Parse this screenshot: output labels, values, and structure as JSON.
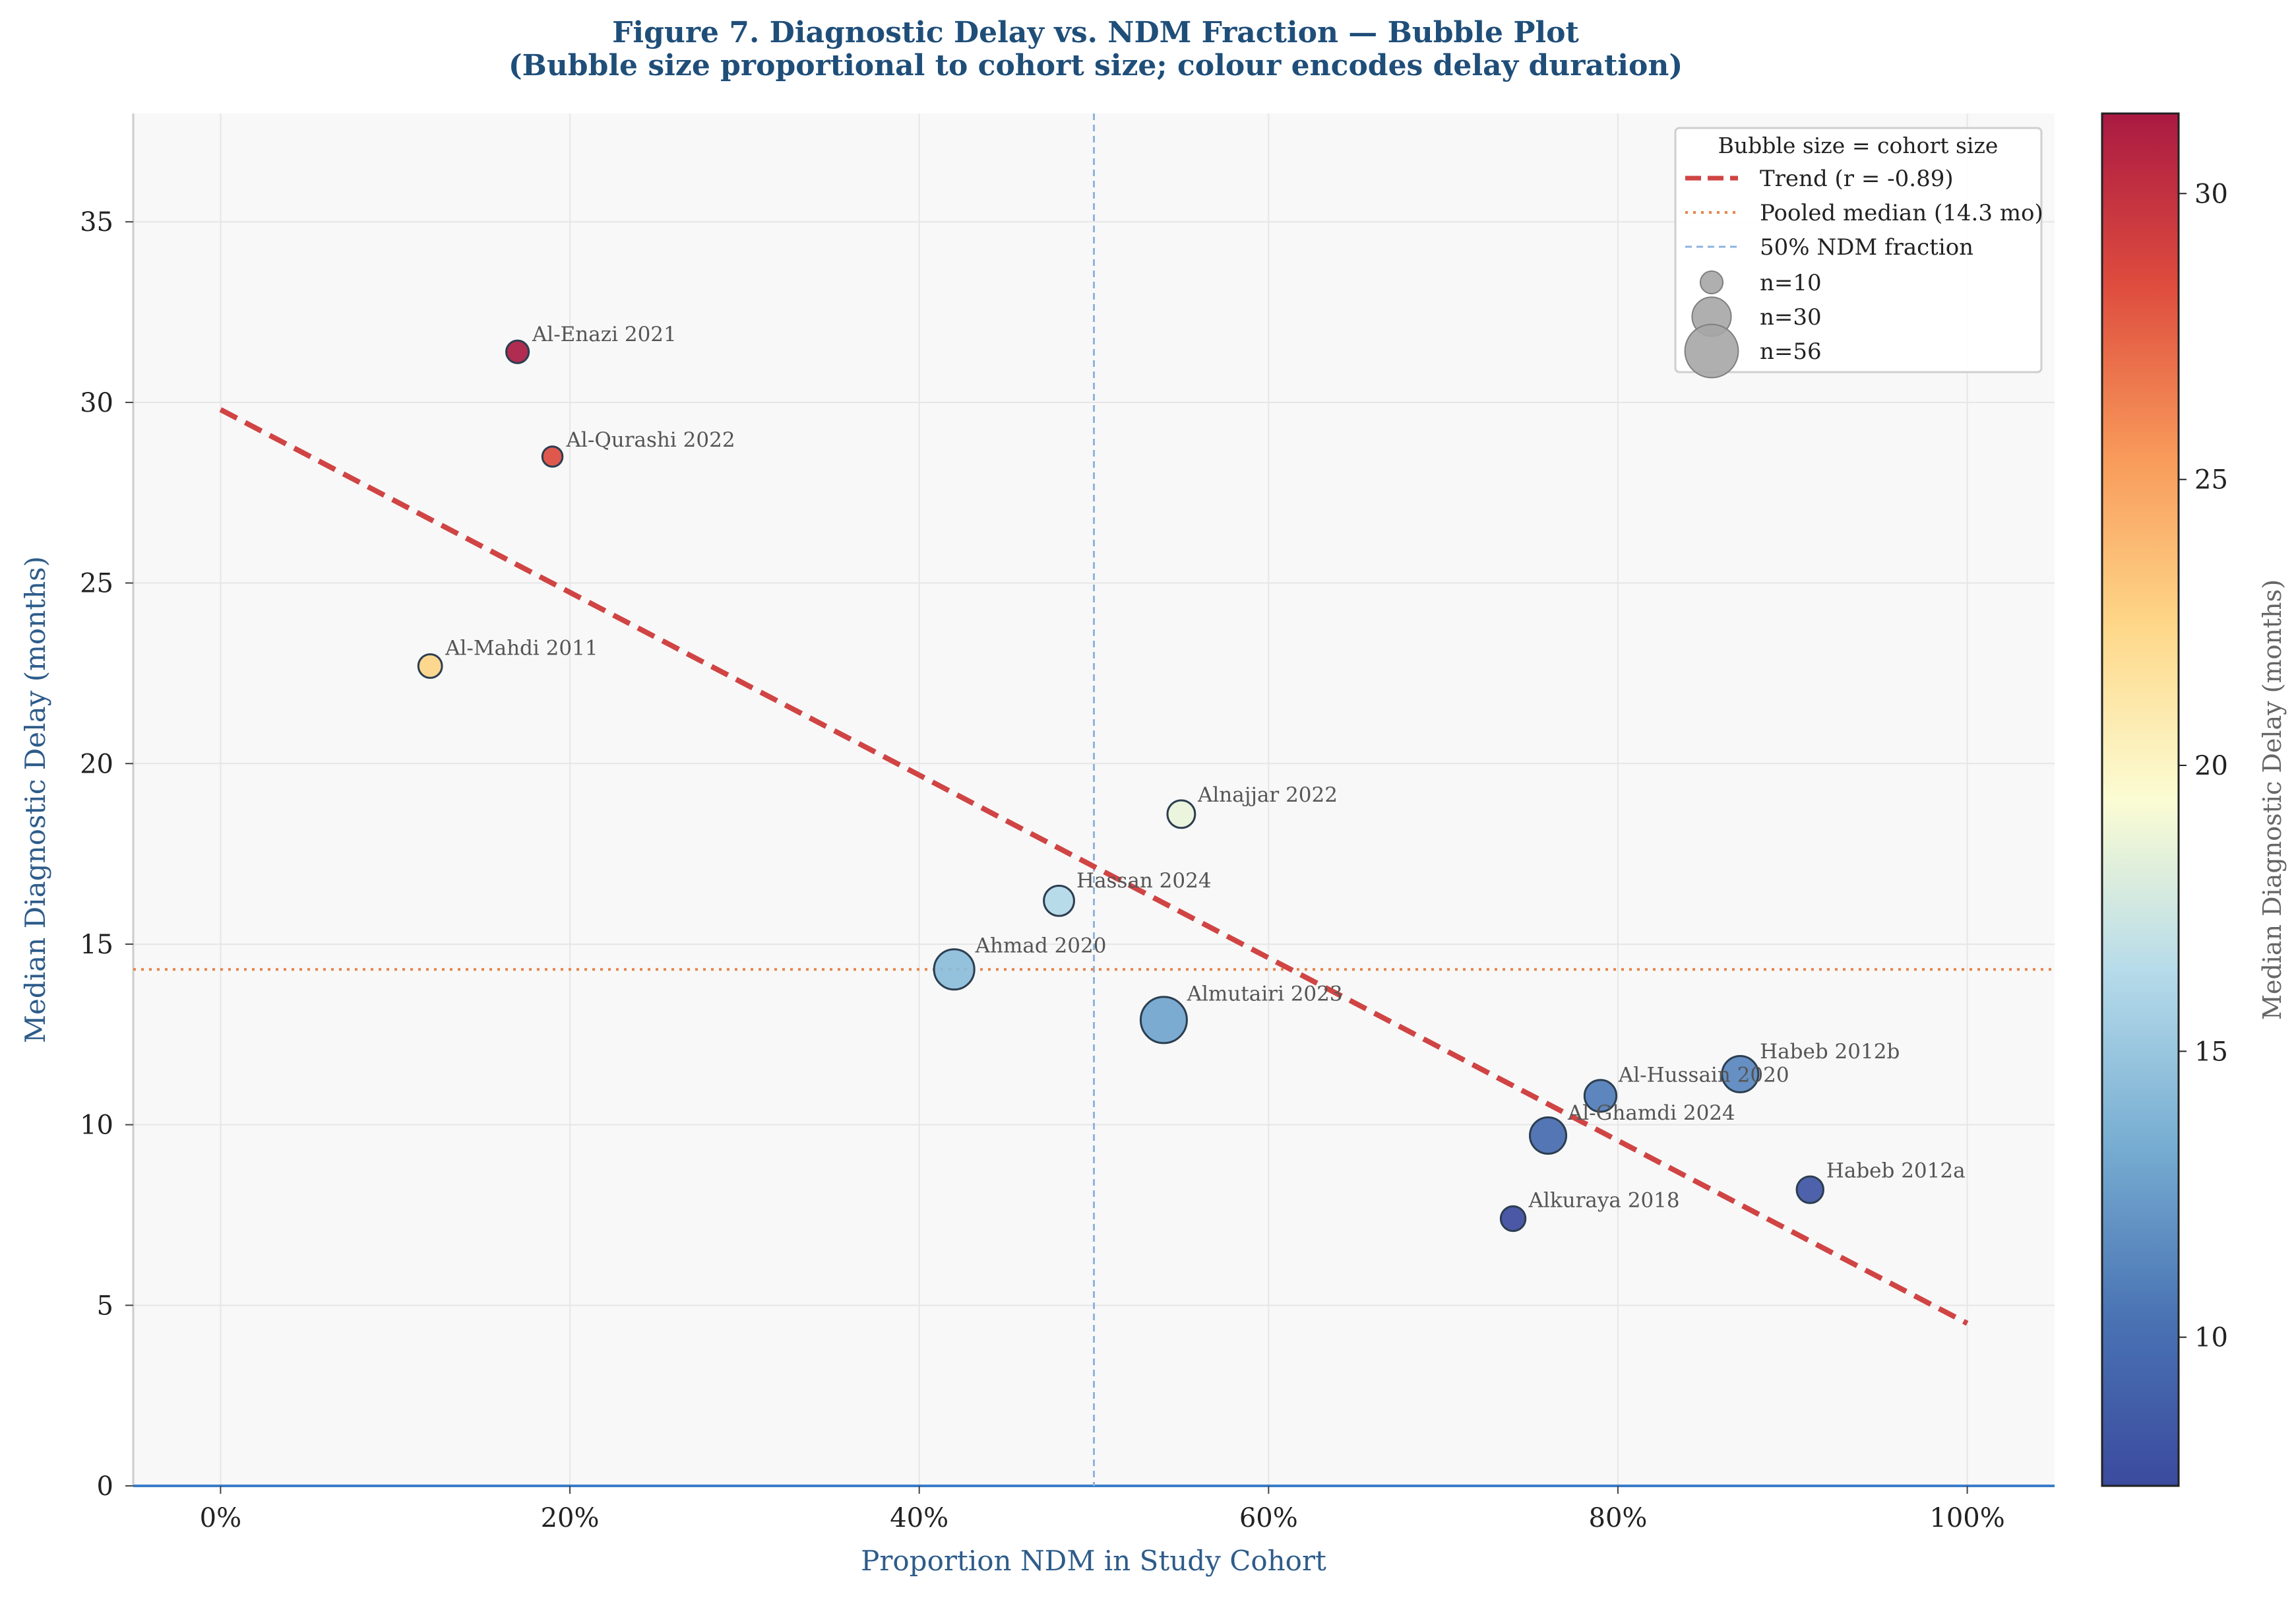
{
  "chart_data": {
    "type": "scatter",
    "title_line1": "Figure 7. Diagnostic Delay vs. NDM Fraction — Bubble Plot",
    "title_line2": "(Bubble size proportional to cohort size; colour encodes delay duration)",
    "xlabel": "Proportion NDM in Study Cohort",
    "ylabel": "Median Diagnostic Delay (months)",
    "colorbar_label": "Median Diagnostic Delay (months)",
    "xlim": [
      -0.05,
      1.05
    ],
    "ylim": [
      0,
      38
    ],
    "xticks": [
      0,
      0.2,
      0.4,
      0.6,
      0.8,
      1.0
    ],
    "xtick_labels": [
      "0%",
      "20%",
      "40%",
      "60%",
      "80%",
      "100%"
    ],
    "yticks": [
      0,
      5,
      10,
      15,
      20,
      25,
      30,
      35
    ],
    "ytick_labels": [
      "0",
      "5",
      "10",
      "15",
      "20",
      "25",
      "30",
      "35"
    ],
    "color_range": [
      7.4,
      31.4
    ],
    "colorbar_ticks": [
      10,
      15,
      20,
      25,
      30
    ],
    "colorbar_tick_labels": [
      "10",
      "15",
      "20",
      "25",
      "30"
    ],
    "grid": true,
    "legend_position": "top-right",
    "points": [
      {
        "label": "Al-Enazi 2021",
        "x": 0.17,
        "y": 31.4,
        "n": 10
      },
      {
        "label": "Al-Qurashi 2022",
        "x": 0.19,
        "y": 28.5,
        "n": 8
      },
      {
        "label": "Al-Mahdi 2011",
        "x": 0.12,
        "y": 22.7,
        "n": 11
      },
      {
        "label": "Alnajjar 2022",
        "x": 0.55,
        "y": 18.6,
        "n": 15
      },
      {
        "label": "Hassan 2024",
        "x": 0.48,
        "y": 16.2,
        "n": 18
      },
      {
        "label": "Ahmad 2020",
        "x": 0.42,
        "y": 14.3,
        "n": 32
      },
      {
        "label": "Almutairi 2023",
        "x": 0.54,
        "y": 12.9,
        "n": 42
      },
      {
        "label": "Habeb 2012b",
        "x": 0.87,
        "y": 11.4,
        "n": 26
      },
      {
        "label": "Al-Hussain 2020",
        "x": 0.79,
        "y": 10.8,
        "n": 20
      },
      {
        "label": "Al-Ghamdi 2024",
        "x": 0.76,
        "y": 9.7,
        "n": 26
      },
      {
        "label": "Habeb 2012a",
        "x": 0.91,
        "y": 8.2,
        "n": 14
      },
      {
        "label": "Alkuraya 2018",
        "x": 0.74,
        "y": 7.4,
        "n": 12
      }
    ],
    "trend": {
      "x": [
        0,
        1.0
      ],
      "y": [
        29.8,
        4.5
      ],
      "color": "#d04444"
    },
    "pooled_median": {
      "y": 14.3,
      "color": "#e8844a"
    },
    "ndm_half_line": {
      "x": 0.5,
      "color": "#8fb3dd"
    },
    "legend": {
      "title": "Bubble size = cohort size",
      "trend_label": "Trend (r = -0.89)",
      "median_label": "Pooled median (14.3 mo)",
      "ndm_label": "50% NDM fraction",
      "size_labels": [
        "n=10",
        "n=30",
        "n=56"
      ],
      "size_values": [
        10,
        30,
        56
      ]
    },
    "colors": {
      "title": "#1f4e79",
      "axis_label": "#2e5c8a",
      "bubble_edge": "#2c3e50",
      "bubble_label": "#555555",
      "plot_bg": "#f8f8f8",
      "grid": "#e6e6e6",
      "legend_bubble": "#a6a6a6",
      "bottom_axis": "#3a7dc9"
    }
  }
}
